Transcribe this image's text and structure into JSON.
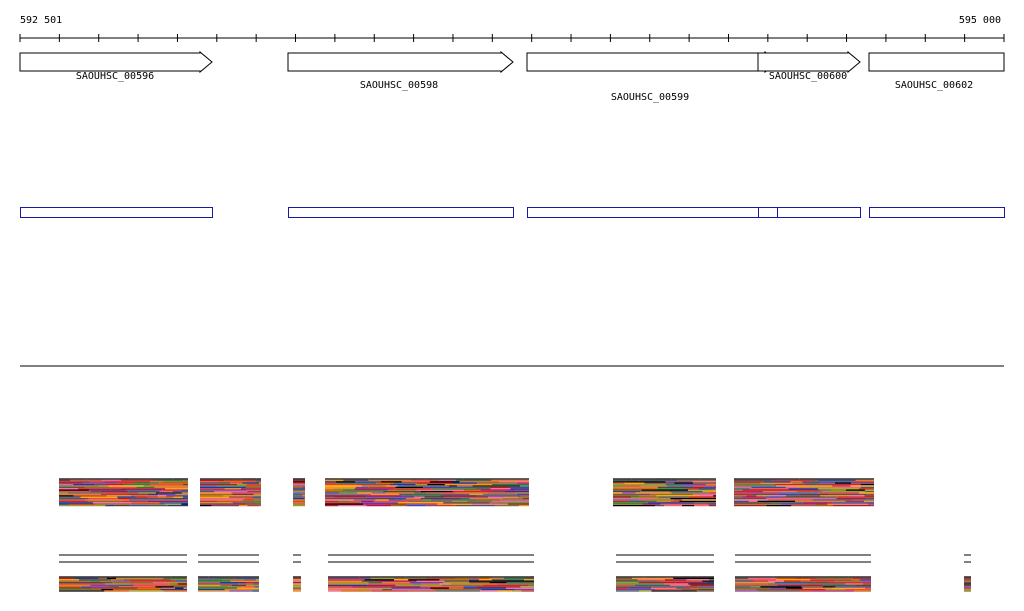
{
  "ruler": {
    "start_label": "592 501",
    "end_label": "595 000"
  },
  "colors": {
    "gene_outline": "#000000",
    "gene_fill": "#ffffff",
    "feature_outline": "#1a1aa6",
    "divider": "#000000",
    "read_palette": [
      "#000000",
      "#c0392b",
      "#e67e22",
      "#8e6c2f",
      "#2e7d32",
      "#7b3fa0",
      "#d35400",
      "#1f3a93",
      "#e74c3c",
      "#6d4c41",
      "#9e9d24",
      "#ad1457",
      "#ff9800",
      "#5d4037",
      "#3949ab",
      "#f06292",
      "#827717",
      "#b71c1c",
      "#455a64",
      "#c62828"
    ]
  },
  "genes": [
    {
      "name": "SAOUHSC_00596",
      "strand": "+"
    },
    {
      "name": "SAOUHSC_00598",
      "strand": "+"
    },
    {
      "name": "SAOUHSC_00599",
      "strand": "+"
    },
    {
      "name": "SAOUHSC_00600",
      "strand": "+"
    },
    {
      "name": "SAOUHSC_00602",
      "strand": "+"
    }
  ]
}
